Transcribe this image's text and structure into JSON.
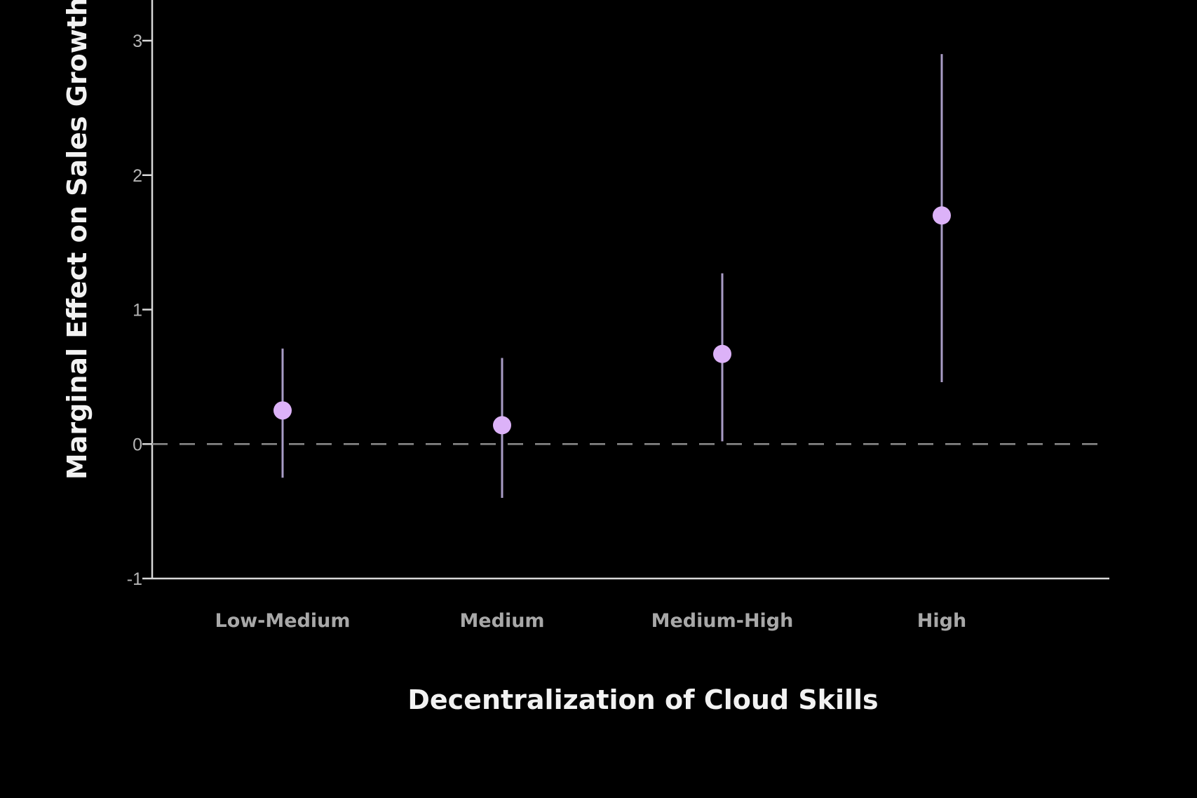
{
  "chart_data": {
    "type": "scatter",
    "subtype": "point-estimate with confidence intervals",
    "title": "",
    "xlabel": "Decentralization of Cloud Skills",
    "ylabel": "Marginal Effect on Sales Growth",
    "categories": [
      "Low-Medium",
      "Medium",
      "Medium-High",
      "High"
    ],
    "series": [
      {
        "estimates": [
          0.25,
          0.14,
          0.67,
          1.7
        ],
        "ci_lower": [
          -0.25,
          -0.4,
          0.02,
          0.46
        ],
        "ci_upper": [
          0.71,
          0.64,
          1.27,
          2.9
        ]
      }
    ],
    "reference_line": {
      "y": 0,
      "style": "dashed"
    },
    "ylim": [
      -1,
      3
    ],
    "yticks": [
      "-1",
      "0",
      "1",
      "2",
      "3"
    ],
    "grid": false,
    "legend": "none",
    "colors": {
      "background": "#000000",
      "point": "#dcb2f8",
      "error_bar": "#a99cc6",
      "axis": "#d8d8d8",
      "reference_line": "#8c8c8c"
    }
  }
}
